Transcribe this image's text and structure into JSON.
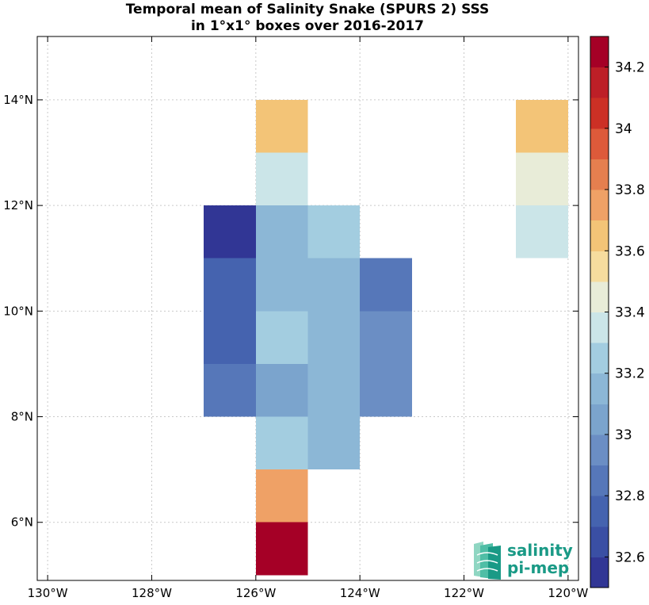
{
  "chart_data": {
    "type": "heatmap",
    "title": [
      "Temporal mean of Salinity Snake (SPURS 2) SSS",
      "in 1°x1° boxes over 2016-2017"
    ],
    "xlim": [
      -130.2,
      -119.8
    ],
    "ylim": [
      4.9,
      15.2
    ],
    "x_ticks": [
      -130,
      -128,
      -126,
      -124,
      -122,
      -120
    ],
    "y_ticks": [
      6,
      8,
      10,
      12,
      14
    ],
    "x_tick_labels": [
      "130°W",
      "128°W",
      "126°W",
      "124°W",
      "122°W",
      "120°W"
    ],
    "y_tick_labels": [
      "6°N",
      "8°N",
      "10°N",
      "12°N",
      "14°N"
    ],
    "grid": true,
    "colorbar": {
      "min": 32.5,
      "max": 34.3,
      "step": 0.1,
      "tick_values": [
        32.6,
        32.8,
        33.0,
        33.2,
        33.4,
        33.6,
        33.8,
        34.0,
        34.2
      ],
      "tick_labels": [
        "32.6",
        "32.8",
        "33",
        "33.2",
        "33.4",
        "33.6",
        "33.8",
        "34",
        "34.2"
      ],
      "colors": [
        "#313695",
        "#3a4fa4",
        "#4563af",
        "#5677b9",
        "#6b8ec4",
        "#7ba4cd",
        "#8cb7d6",
        "#a3cde0",
        "#cbe5e8",
        "#e8ecd8",
        "#f6dc9e",
        "#f3c477",
        "#efa166",
        "#e57f4f",
        "#dd5a3a",
        "#cc3025",
        "#bd1f27",
        "#a50026"
      ]
    },
    "cells": [
      {
        "lon": -126,
        "lat": 13,
        "value": 33.68
      },
      {
        "lon": -126,
        "lat": 12,
        "value": 33.38
      },
      {
        "lon": -127,
        "lat": 11,
        "value": 32.55
      },
      {
        "lon": -126,
        "lat": 11,
        "value": 33.18
      },
      {
        "lon": -125,
        "lat": 11,
        "value": 33.28
      },
      {
        "lon": -127,
        "lat": 10,
        "value": 32.75
      },
      {
        "lon": -126,
        "lat": 10,
        "value": 33.12
      },
      {
        "lon": -125,
        "lat": 10,
        "value": 33.18
      },
      {
        "lon": -124,
        "lat": 10,
        "value": 32.85
      },
      {
        "lon": -127,
        "lat": 9,
        "value": 32.8
      },
      {
        "lon": -126,
        "lat": 9,
        "value": 33.28
      },
      {
        "lon": -125,
        "lat": 9,
        "value": 33.12
      },
      {
        "lon": -124,
        "lat": 9,
        "value": 32.92
      },
      {
        "lon": -127,
        "lat": 8,
        "value": 32.85
      },
      {
        "lon": -126,
        "lat": 8,
        "value": 33.02
      },
      {
        "lon": -125,
        "lat": 8,
        "value": 33.18
      },
      {
        "lon": -124,
        "lat": 8,
        "value": 32.92
      },
      {
        "lon": -126,
        "lat": 7,
        "value": 33.28
      },
      {
        "lon": -125,
        "lat": 7,
        "value": 33.18
      },
      {
        "lon": -126,
        "lat": 6,
        "value": 33.78
      },
      {
        "lon": -126,
        "lat": 5,
        "value": 34.25
      },
      {
        "lon": -121,
        "lat": 13,
        "value": 33.62
      },
      {
        "lon": -121,
        "lat": 12,
        "value": 33.42
      },
      {
        "lon": -121,
        "lat": 11,
        "value": 33.38
      }
    ]
  },
  "logo": {
    "line1": "salinity",
    "line2": "pi-mep"
  }
}
